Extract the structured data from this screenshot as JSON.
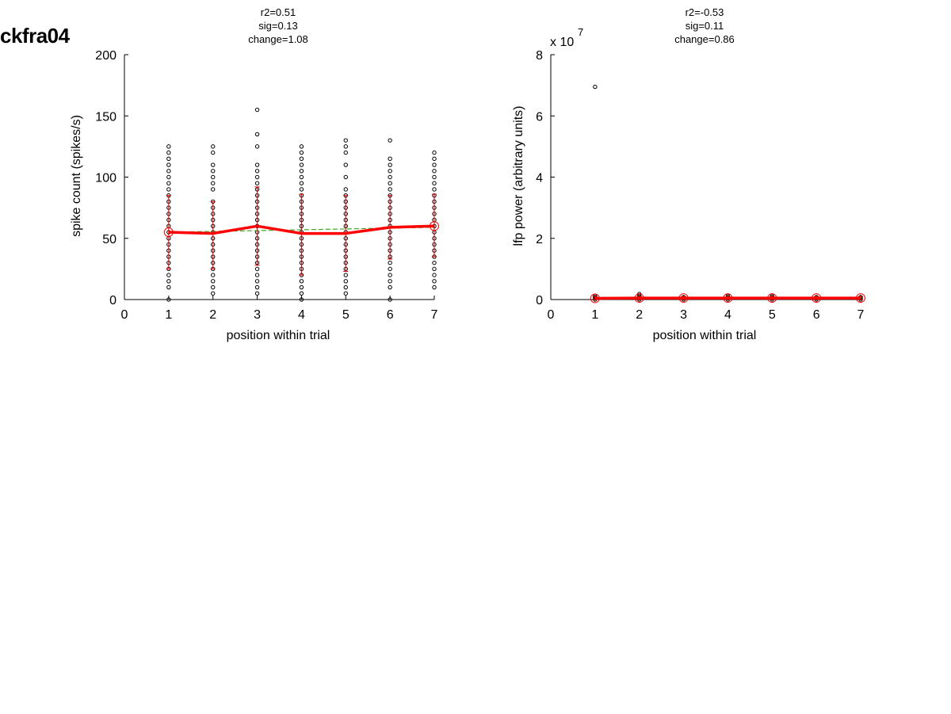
{
  "figure": {
    "title": "ckfra04"
  },
  "chart_data": [
    {
      "type": "scatter",
      "title_lines": [
        "r2=0.51",
        "sig=0.13",
        "change=1.08"
      ],
      "xlabel": "position within trial",
      "ylabel": "spike count (spikes/s)",
      "xlim": [
        0,
        7
      ],
      "ylim": [
        0,
        200
      ],
      "xticks": [
        0,
        1,
        2,
        3,
        4,
        5,
        6,
        7
      ],
      "yticks": [
        0,
        50,
        100,
        150,
        200
      ],
      "scale_label": "",
      "raw_points": [
        {
          "x": 1,
          "ys": [
            0,
            10,
            15,
            20,
            25,
            30,
            35,
            40,
            45,
            50,
            55,
            60,
            65,
            70,
            75,
            80,
            85,
            90,
            95,
            100,
            105,
            110,
            115,
            120,
            125
          ]
        },
        {
          "x": 2,
          "ys": [
            5,
            10,
            15,
            20,
            25,
            30,
            35,
            40,
            45,
            50,
            55,
            60,
            65,
            70,
            75,
            80,
            90,
            95,
            100,
            105,
            110,
            120,
            125
          ]
        },
        {
          "x": 3,
          "ys": [
            5,
            10,
            15,
            20,
            25,
            30,
            35,
            40,
            45,
            50,
            55,
            60,
            65,
            70,
            75,
            80,
            85,
            90,
            95,
            100,
            105,
            110,
            125,
            135,
            155
          ]
        },
        {
          "x": 4,
          "ys": [
            0,
            5,
            10,
            15,
            20,
            25,
            30,
            35,
            40,
            45,
            50,
            55,
            60,
            65,
            70,
            75,
            80,
            85,
            90,
            95,
            100,
            105,
            110,
            115,
            120,
            125
          ]
        },
        {
          "x": 5,
          "ys": [
            5,
            10,
            15,
            20,
            25,
            30,
            35,
            40,
            45,
            50,
            55,
            60,
            65,
            70,
            75,
            80,
            85,
            90,
            100,
            110,
            120,
            125,
            130
          ]
        },
        {
          "x": 6,
          "ys": [
            0,
            10,
            15,
            20,
            25,
            30,
            35,
            40,
            45,
            50,
            55,
            60,
            65,
            70,
            75,
            80,
            85,
            90,
            95,
            100,
            105,
            110,
            115,
            130
          ]
        },
        {
          "x": 7,
          "ys": [
            10,
            15,
            20,
            25,
            30,
            35,
            40,
            45,
            50,
            55,
            60,
            65,
            70,
            75,
            80,
            85,
            90,
            95,
            100,
            105,
            110,
            115,
            120
          ]
        }
      ],
      "mean": {
        "x": [
          1,
          2,
          3,
          4,
          5,
          6,
          7
        ],
        "y": [
          55,
          54,
          60,
          54,
          54,
          59,
          60
        ]
      },
      "error": {
        "lower": [
          25,
          25,
          28,
          20,
          23,
          33,
          35
        ],
        "upper": [
          85,
          80,
          92,
          86,
          85,
          85,
          86
        ]
      },
      "fit": {
        "x": [
          1,
          7
        ],
        "y": [
          55,
          59
        ]
      },
      "colors": {
        "mean": "#ff0000",
        "error": "#dd0000",
        "fit": "#3ea820",
        "points": "#000000"
      }
    },
    {
      "type": "scatter",
      "title_lines": [
        "r2=-0.53",
        "sig=0.11",
        "change=0.86"
      ],
      "xlabel": "position within trial",
      "ylabel": "lfp power (arbitrary units)",
      "xlim": [
        0,
        7
      ],
      "ylim": [
        0,
        8
      ],
      "xticks": [
        0,
        1,
        2,
        3,
        4,
        5,
        6,
        7
      ],
      "yticks": [
        0,
        2,
        4,
        6,
        8
      ],
      "scale_label": "x 10",
      "scale_exponent": "7",
      "raw_points": [
        {
          "x": 1,
          "ys": [
            0,
            0.04,
            0.08,
            0.12,
            6.95
          ]
        },
        {
          "x": 2,
          "ys": [
            0,
            0.04,
            0.08,
            0.12,
            0.18
          ]
        },
        {
          "x": 3,
          "ys": [
            0,
            0.04,
            0.08
          ]
        },
        {
          "x": 4,
          "ys": [
            0,
            0.04,
            0.08,
            0.12
          ]
        },
        {
          "x": 5,
          "ys": [
            0,
            0.04,
            0.08,
            0.12
          ]
        },
        {
          "x": 6,
          "ys": [
            0,
            0.04,
            0.08
          ]
        },
        {
          "x": 7,
          "ys": [
            0,
            0.04,
            0.08
          ]
        }
      ],
      "mean": {
        "x": [
          1,
          2,
          3,
          4,
          5,
          6,
          7
        ],
        "y": [
          0.04,
          0.05,
          0.05,
          0.05,
          0.05,
          0.05,
          0.05
        ]
      },
      "error": {
        "lower": [
          0,
          0,
          0,
          0,
          0,
          0,
          0
        ],
        "upper": [
          0.1,
          0.1,
          0.1,
          0.1,
          0.1,
          0.1,
          0.1
        ]
      },
      "fit": {
        "x": [
          1,
          7
        ],
        "y": [
          0.07,
          0.03
        ]
      },
      "colors": {
        "mean": "#ff0000",
        "error": "#dd0000",
        "fit": "#3ea820",
        "points": "#000000"
      }
    }
  ]
}
